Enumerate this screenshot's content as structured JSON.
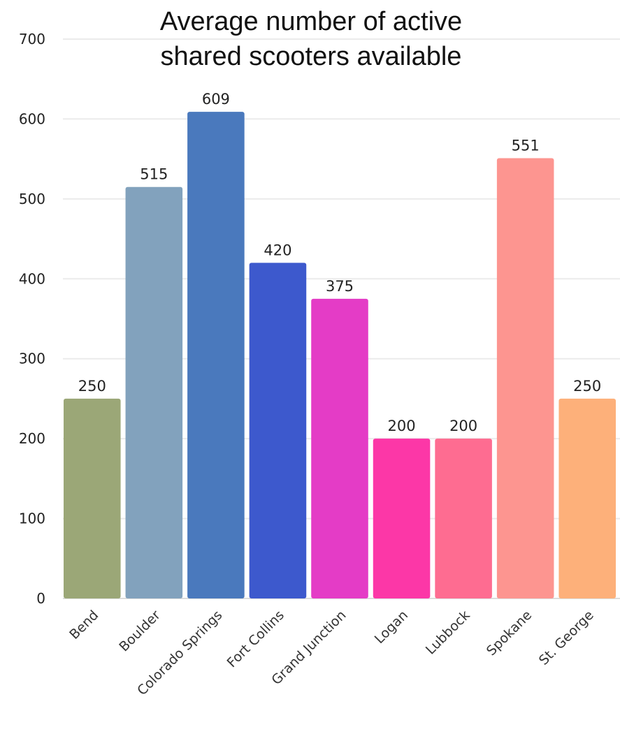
{
  "chart_data": {
    "type": "bar",
    "title_lines": [
      "Average number of active",
      "shared scooters available"
    ],
    "categories": [
      "Bend",
      "Boulder",
      "Colorado Springs",
      "Fort Collins",
      "Grand Junction",
      "Logan",
      "Lubbock",
      "Spokane",
      "St. George"
    ],
    "values": [
      250,
      515,
      609,
      420,
      375,
      200,
      200,
      551,
      250
    ],
    "colors": [
      "#9BA777",
      "#82A2BD",
      "#4A79BD",
      "#3D59CD",
      "#E43CC6",
      "#FC37A7",
      "#FE6C91",
      "#FD9590",
      "#FDB07A"
    ],
    "ylim": [
      0,
      700
    ],
    "yticks": [
      0,
      100,
      200,
      300,
      400,
      500,
      600,
      700
    ],
    "xlabel": "",
    "ylabel": "",
    "grid": true,
    "legend": "none"
  }
}
